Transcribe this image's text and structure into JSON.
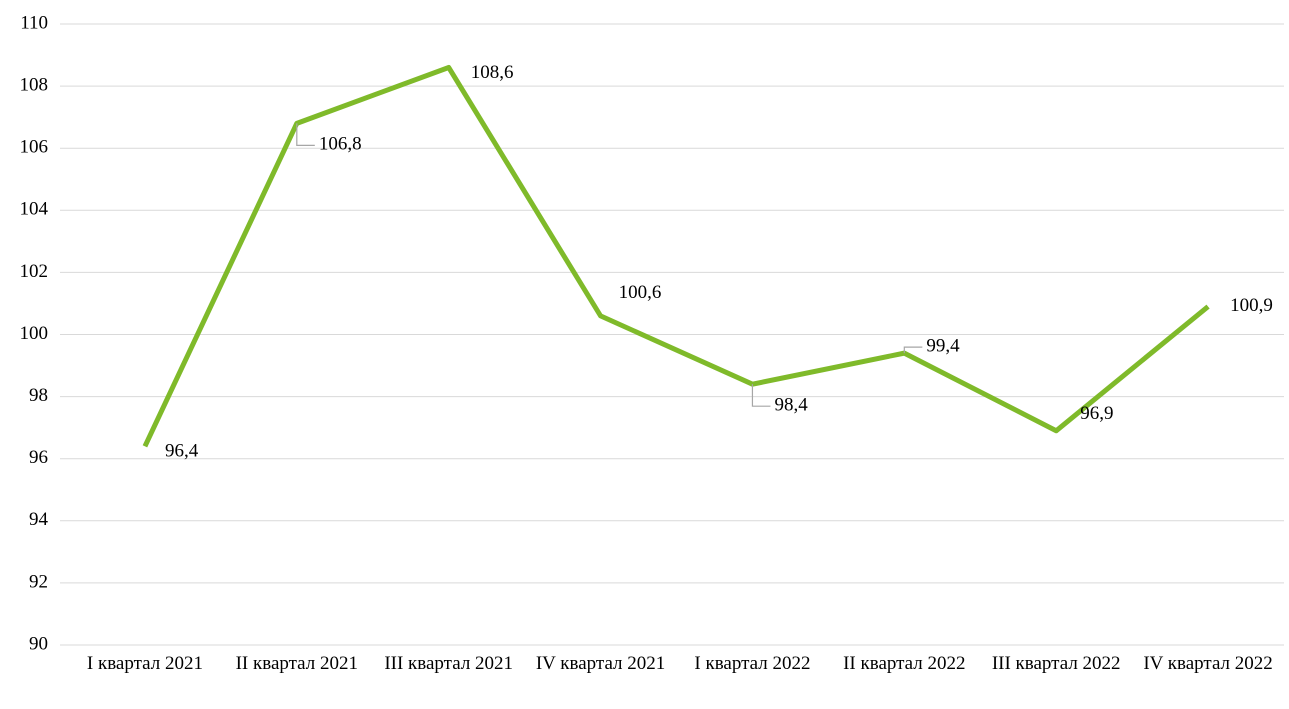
{
  "chart_data": {
    "type": "line",
    "categories": [
      "I квартал 2021",
      "II квартал 2021",
      "III квартал 2021",
      "IV квартал 2021",
      "I квартал 2022",
      "II квартал 2022",
      "III квартал 2022",
      "IV квартал 2022"
    ],
    "series": [
      {
        "color": "#7fba2a",
        "values": [
          96.4,
          106.8,
          108.6,
          100.6,
          98.4,
          99.4,
          96.9,
          100.9
        ],
        "value_labels": [
          "96,4",
          "106,8",
          "108,6",
          "100,6",
          "98,4",
          "99,4",
          "96,9",
          "100,9"
        ]
      }
    ],
    "ylim": [
      90,
      110
    ],
    "yticks": [
      90,
      92,
      94,
      96,
      98,
      100,
      102,
      104,
      106,
      108,
      110
    ],
    "grid": true
  }
}
